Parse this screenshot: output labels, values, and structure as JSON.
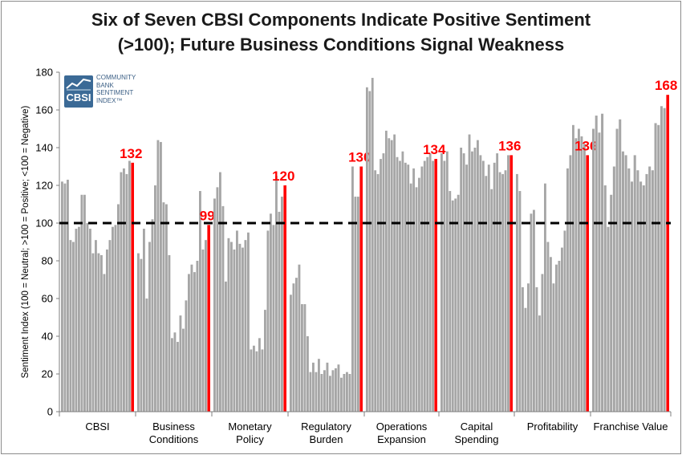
{
  "title_line1": "Six of Seven CBSI Components Indicate Positive Sentiment",
  "title_line2": "(>100); Future Business Conditions Signal Weakness",
  "logo": {
    "abbr": "CBSI",
    "line1": "COMMUNITY",
    "line2": "BANK",
    "line3": "SENTIMENT",
    "line4": "INDEX™"
  },
  "colors": {
    "bar": "#a6a6a6",
    "highlight": "#ff0000",
    "neutral_line": "#000000",
    "logo": "#3b6a96"
  },
  "chart_data": {
    "type": "bar",
    "ylabel": "Sentiment Index (100 = Neutral; >100 = Positive; <100 = Negative)",
    "ylim": [
      0,
      180
    ],
    "yticks": [
      0,
      20,
      40,
      60,
      80,
      100,
      120,
      140,
      160,
      180
    ],
    "reference_line": 100,
    "groups": [
      {
        "name": "CBSI",
        "label_lines": [
          "CBSI"
        ],
        "latest": 132,
        "latest_label": "132",
        "values": [
          122,
          121,
          123,
          91,
          90,
          97,
          98,
          115,
          115,
          100,
          97,
          84,
          91,
          84,
          83,
          73,
          86,
          91,
          98,
          99,
          110,
          127,
          129,
          126,
          133,
          132
        ]
      },
      {
        "name": "Business Conditions",
        "label_lines": [
          "Business",
          "Conditions"
        ],
        "latest": 99,
        "latest_label": "99",
        "values": [
          84,
          81,
          97,
          60,
          90,
          102,
          120,
          144,
          143,
          111,
          110,
          83,
          39,
          42,
          37,
          51,
          44,
          59,
          73,
          78,
          74,
          80,
          117,
          86,
          91,
          99
        ]
      },
      {
        "name": "Monetary Policy",
        "label_lines": [
          "Monetary",
          "Policy"
        ],
        "latest": 120,
        "latest_label": "120",
        "values": [
          113,
          119,
          127,
          109,
          69,
          92,
          90,
          86,
          96,
          89,
          87,
          91,
          95,
          33,
          35,
          32,
          39,
          33,
          54,
          96,
          105,
          99,
          125,
          106,
          114,
          120
        ]
      },
      {
        "name": "Regulatory Burden",
        "label_lines": [
          "Regulatory",
          "Burden"
        ],
        "latest": 130,
        "latest_label": "130",
        "values": [
          62,
          68,
          71,
          78,
          57,
          57,
          40,
          21,
          26,
          21,
          28,
          20,
          22,
          26,
          19,
          22,
          23,
          25,
          18,
          20,
          21,
          20,
          130,
          114,
          114,
          130
        ]
      },
      {
        "name": "Operations Expansion",
        "label_lines": [
          "Operations",
          "Expansion"
        ],
        "latest": 134,
        "latest_label": "134",
        "values": [
          172,
          170,
          177,
          128,
          126,
          134,
          137,
          149,
          145,
          144,
          147,
          135,
          133,
          138,
          132,
          131,
          121,
          129,
          119,
          124,
          130,
          133,
          135,
          137,
          133,
          134
        ]
      },
      {
        "name": "Capital Spending",
        "label_lines": [
          "Capital",
          "Spending"
        ],
        "latest": 136,
        "latest_label": "136",
        "values": [
          137,
          133,
          138,
          117,
          112,
          113,
          115,
          140,
          137,
          131,
          147,
          138,
          140,
          144,
          136,
          133,
          125,
          131,
          118,
          132,
          137,
          127,
          126,
          128,
          136,
          136
        ]
      },
      {
        "name": "Profitability",
        "label_lines": [
          "Profitability"
        ],
        "latest": 136,
        "latest_label": "136",
        "values": [
          126,
          117,
          66,
          55,
          68,
          105,
          107,
          66,
          51,
          73,
          121,
          90,
          82,
          68,
          78,
          80,
          87,
          96,
          129,
          136,
          152,
          145,
          150,
          146,
          142,
          136
        ]
      },
      {
        "name": "Franchise Value",
        "label_lines": [
          "Franchise Value"
        ],
        "latest": 168,
        "latest_label": "168",
        "values": [
          150,
          157,
          148,
          158,
          120,
          98,
          115,
          130,
          150,
          155,
          138,
          136,
          129,
          122,
          136,
          128,
          122,
          120,
          126,
          130,
          128,
          153,
          152,
          162,
          161,
          168
        ]
      }
    ]
  }
}
